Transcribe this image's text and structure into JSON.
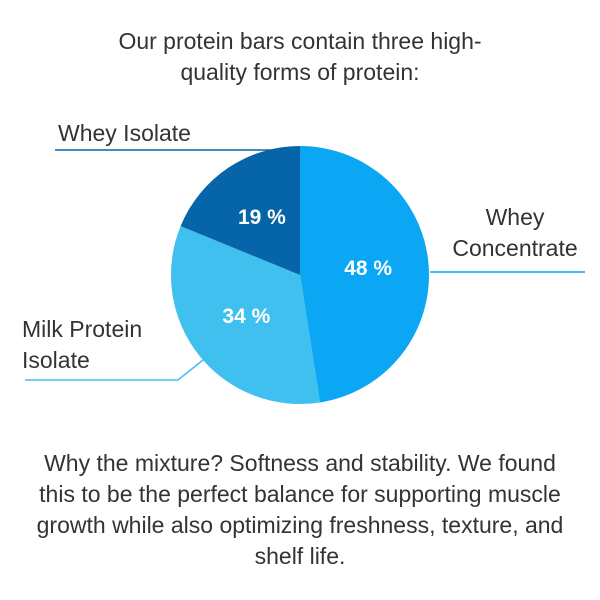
{
  "chart_data": {
    "type": "pie",
    "title": "Our protein bars contain three high-quality forms of protein:",
    "categories": [
      "Whey Concentrate",
      "Milk Protein Isolate",
      "Whey Isolate"
    ],
    "values": [
      48,
      34,
      19
    ],
    "value_labels": [
      "48 %",
      "34 %",
      "19 %"
    ],
    "colors": [
      "#0ba6f4",
      "#3fc0ef",
      "#0665a9"
    ],
    "note": "Why the mixture? Softness and stability. We found this to be the perfect balance for supporting muscle growth while also optimizing freshness, texture, and shelf life."
  }
}
